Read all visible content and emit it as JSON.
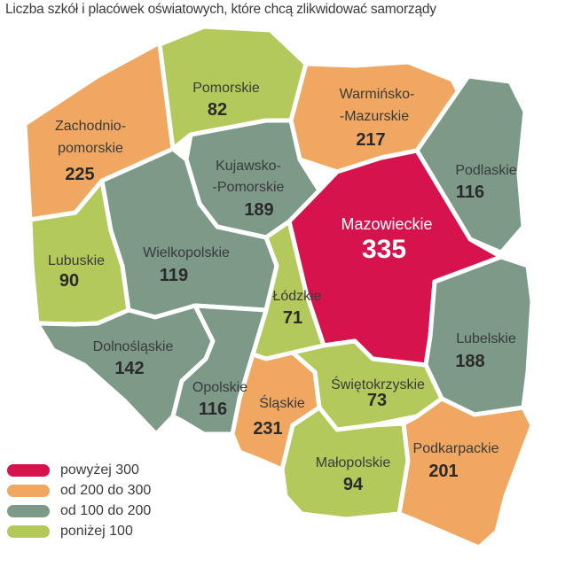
{
  "title": "Liczba szkół i placówek oświatowych, które chcą zlikwidować samorządy",
  "colors": {
    "red": "#d6134d",
    "orange": "#f0a761",
    "green_gray": "#7c9a87",
    "light_green": "#b4c95c"
  },
  "regions": {
    "zachodniopomorskie": {
      "name1": "Zachodnio-",
      "name2": "pomorskie",
      "value": "225",
      "category": "orange"
    },
    "pomorskie": {
      "name1": "Pomorskie",
      "value": "82",
      "category": "light_green"
    },
    "warminsko": {
      "name1": "Warmińsko-",
      "name2": "-Mazurskie",
      "value": "217",
      "category": "orange"
    },
    "podlaskie": {
      "name1": "Podlaskie",
      "value": "116",
      "category": "green_gray"
    },
    "kujawsko": {
      "name1": "Kujawsko-",
      "name2": "-Pomorskie",
      "value": "189",
      "category": "green_gray"
    },
    "mazowieckie": {
      "name1": "Mazowieckie",
      "value": "335",
      "category": "red"
    },
    "lubuskie": {
      "name1": "Lubuskie",
      "value": "90",
      "category": "light_green"
    },
    "wielkopolskie": {
      "name1": "Wielkopolskie",
      "value": "119",
      "category": "green_gray"
    },
    "lodzkie": {
      "name1": "Łódzkie",
      "value": "71",
      "category": "light_green"
    },
    "lubelskie": {
      "name1": "Lubelskie",
      "value": "188",
      "category": "green_gray"
    },
    "dolnoslaskie": {
      "name1": "Dolnośląskie",
      "value": "142",
      "category": "green_gray"
    },
    "opolskie": {
      "name1": "Opolskie",
      "value": "116",
      "category": "green_gray"
    },
    "slaskie": {
      "name1": "Śląskie",
      "value": "231",
      "category": "orange"
    },
    "swietokrzyskie": {
      "name1": "Świętokrzyskie",
      "value": "73",
      "category": "light_green"
    },
    "malopolskie": {
      "name1": "Małopolskie",
      "value": "94",
      "category": "light_green"
    },
    "podkarpackie": {
      "name1": "Podkarpackie",
      "value": "201",
      "category": "orange"
    }
  },
  "legend": [
    {
      "label": "powyżej 300",
      "category": "red"
    },
    {
      "label": "od 200 do 300",
      "category": "orange"
    },
    {
      "label": "od 100 do 200",
      "category": "green_gray"
    },
    {
      "label": "poniżej 100",
      "category": "light_green"
    }
  ]
}
